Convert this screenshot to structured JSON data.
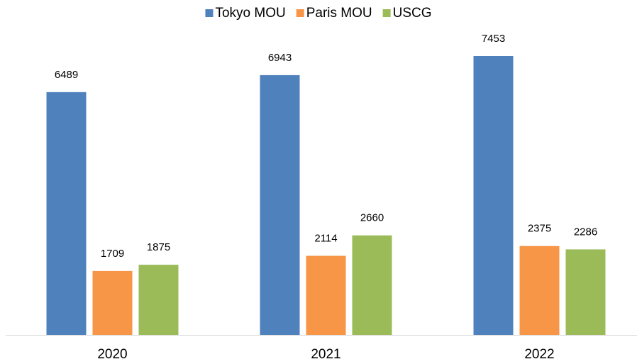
{
  "chart_data": {
    "type": "bar",
    "categories": [
      "2020",
      "2021",
      "2022"
    ],
    "series": [
      {
        "name": "Tokyo MOU",
        "color": "#4f81bd",
        "values": [
          6489,
          6943,
          7453
        ]
      },
      {
        "name": "Paris MOU",
        "color": "#f79646",
        "values": [
          1709,
          2114,
          2375
        ]
      },
      {
        "name": "USCG",
        "color": "#9bbb59",
        "values": [
          1875,
          2660,
          2286
        ]
      }
    ],
    "legend": "top"
  }
}
